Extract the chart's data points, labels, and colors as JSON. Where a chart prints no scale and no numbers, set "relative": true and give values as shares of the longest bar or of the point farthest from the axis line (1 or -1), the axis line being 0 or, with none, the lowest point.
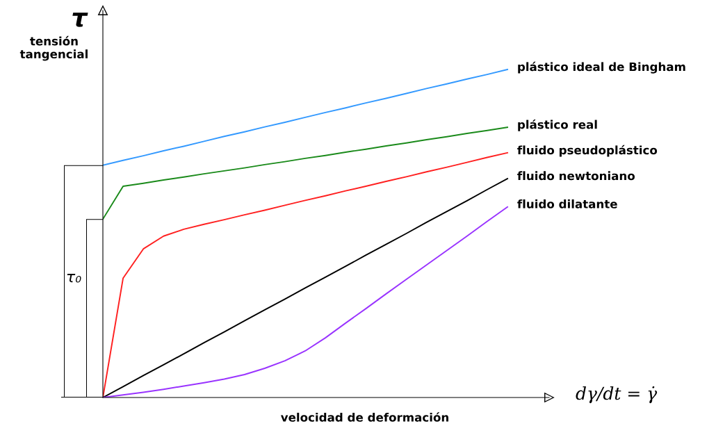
{
  "chart_data": {
    "type": "line",
    "relative": true,
    "xlabel": "velocidad de deformación",
    "ylabel": "tensión tangencial",
    "legend": false,
    "marker": "none",
    "line_style": "solid",
    "categories": [
      null,
      null,
      null,
      null,
      null,
      null,
      null,
      null,
      null,
      null,
      null,
      null,
      null,
      null,
      null,
      null,
      null,
      null,
      null,
      null,
      null
    ],
    "series": [
      {
        "name": "plástico ideal de Bingham",
        "color": "#3399ff",
        "values": [
          0.708,
          0.723,
          0.737,
          0.752,
          0.766,
          0.781,
          0.796,
          0.81,
          0.825,
          0.839,
          0.854,
          0.869,
          0.883,
          0.898,
          0.912,
          0.927,
          0.942,
          0.956,
          0.971,
          0.985,
          1.0
        ]
      },
      {
        "name": "plástico real",
        "color": "#1a8a1a",
        "values": [
          0.544,
          0.644,
          0.653,
          0.663,
          0.672,
          0.682,
          0.691,
          0.7,
          0.71,
          0.719,
          0.729,
          0.738,
          0.748,
          0.757,
          0.767,
          0.776,
          0.786,
          0.795,
          0.805,
          0.814,
          0.824
        ]
      },
      {
        "name": "fluido pseudoplástico",
        "color": "#ff2020",
        "values": [
          0,
          0.364,
          0.453,
          0.492,
          0.513,
          0.528,
          0.542,
          0.557,
          0.571,
          0.586,
          0.601,
          0.615,
          0.63,
          0.644,
          0.659,
          0.673,
          0.688,
          0.702,
          0.717,
          0.732,
          0.746
        ]
      },
      {
        "name": "fluido newtoniano",
        "color": "#000000",
        "values": [
          0,
          0.033,
          0.067,
          0.1,
          0.133,
          0.167,
          0.2,
          0.234,
          0.267,
          0.3,
          0.334,
          0.367,
          0.4,
          0.434,
          0.467,
          0.5,
          0.534,
          0.567,
          0.6,
          0.634,
          0.667
        ]
      },
      {
        "name": "fluido dilatante",
        "color": "#9933ff",
        "values": [
          0,
          0.008,
          0.016,
          0.025,
          0.035,
          0.045,
          0.056,
          0.07,
          0.089,
          0.112,
          0.142,
          0.182,
          0.227,
          0.271,
          0.316,
          0.36,
          0.404,
          0.448,
          0.492,
          0.537,
          0.581
        ]
      }
    ],
    "annotations": [
      "τ",
      "τ₀",
      "dγ/dt = γ̇"
    ]
  }
}
